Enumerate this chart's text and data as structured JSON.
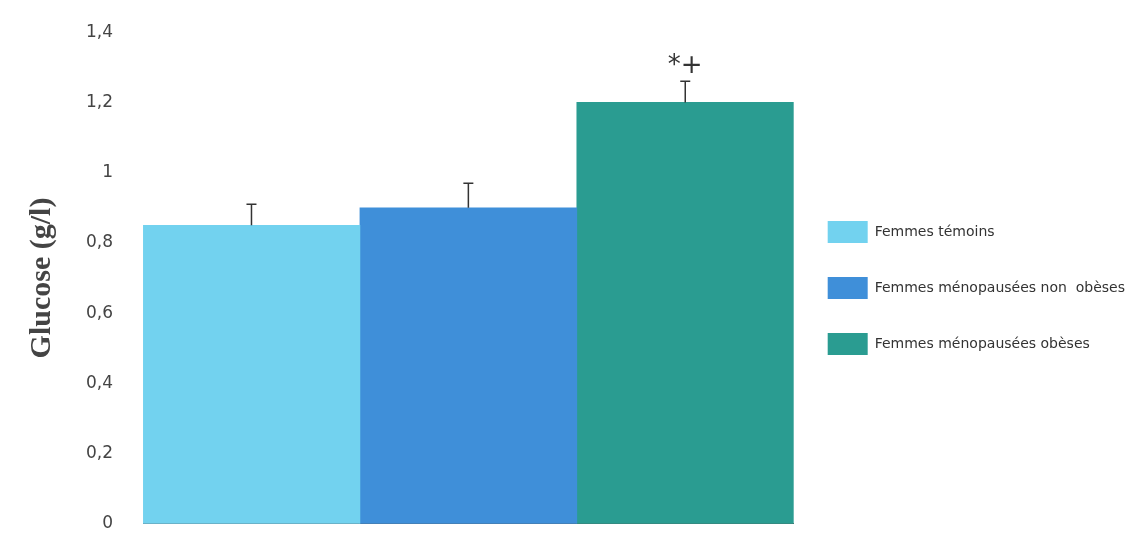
{
  "chart_data": {
    "type": "bar",
    "ylabel": "Glucose (g/l)",
    "categories": [
      null
    ],
    "series": [
      {
        "name": "Femmes témoins",
        "color": "#72d2ef",
        "values": [
          0.85
        ],
        "errors": [
          [
            0.85,
            0.91
          ]
        ]
      },
      {
        "name": "Femmes ménopausées non  obèses",
        "color": "#3f8fd9",
        "values": [
          0.9
        ],
        "errors": [
          [
            0.9,
            0.97
          ]
        ]
      },
      {
        "name": "Femmes ménopausées obèses",
        "color": "#2a9c91",
        "values": [
          1.2
        ],
        "errors": [
          [
            1.2,
            1.26
          ]
        ]
      }
    ],
    "ylim": [
      0,
      1.4
    ],
    "yticks": [
      0,
      {
        "value": 0.2,
        "label": "0,2"
      },
      {
        "value": 0.4,
        "label": "0,4"
      },
      {
        "value": 0.6,
        "label": "0,6"
      },
      {
        "value": 0.8,
        "label": "0,8"
      },
      1,
      {
        "value": 1.2,
        "label": "1,2"
      },
      {
        "value": 1.4,
        "label": "1,4"
      }
    ],
    "annotations": [
      "*+"
    ],
    "grid": false,
    "legend": "right"
  }
}
